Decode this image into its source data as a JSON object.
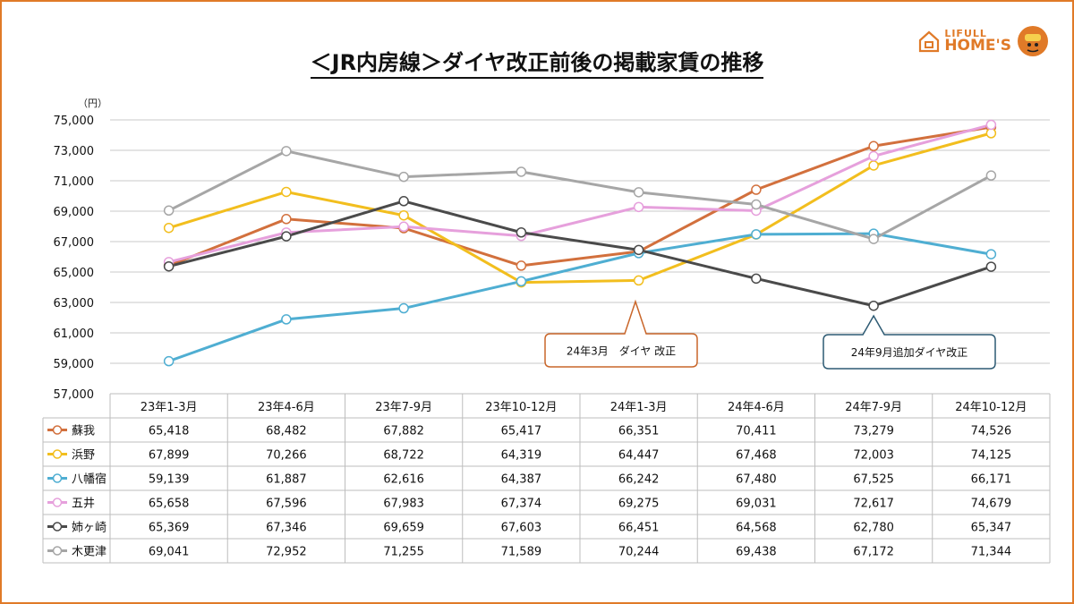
{
  "title": "＜JR内房線＞ダイヤ改正前後の掲載家賃の推移",
  "logo": {
    "line1": "LIFULL",
    "line2": "HOME'S"
  },
  "chart_data": {
    "type": "line",
    "unit_label": "（円）",
    "ylim": [
      57000,
      75000
    ],
    "y_ticks": [
      "57,000",
      "59,000",
      "61,000",
      "63,000",
      "65,000",
      "67,000",
      "69,000",
      "71,000",
      "73,000",
      "75,000"
    ],
    "categories": [
      "23年1-3月",
      "23年4-6月",
      "23年7-9月",
      "23年10-12月",
      "24年1-3月",
      "24年4-6月",
      "24年7-9月",
      "24年10-12月"
    ],
    "series": [
      {
        "name": "蘇我",
        "color": "#D2703D",
        "values": [
          65418,
          68482,
          67882,
          65417,
          66351,
          70411,
          73279,
          74526
        ],
        "labels": [
          "65,418",
          "68,482",
          "67,882",
          "65,417",
          "66,351",
          "70,411",
          "73,279",
          "74,526"
        ]
      },
      {
        "name": "浜野",
        "color": "#F2BE1E",
        "values": [
          67899,
          70266,
          68722,
          64319,
          64447,
          67468,
          72003,
          74125
        ],
        "labels": [
          "67,899",
          "70,266",
          "68,722",
          "64,319",
          "64,447",
          "67,468",
          "72,003",
          "74,125"
        ]
      },
      {
        "name": "八幡宿",
        "color": "#4FAED2",
        "values": [
          59139,
          61887,
          62616,
          64387,
          66242,
          67480,
          67525,
          66171
        ],
        "labels": [
          "59,139",
          "61,887",
          "62,616",
          "64,387",
          "66,242",
          "67,480",
          "67,525",
          "66,171"
        ]
      },
      {
        "name": "五井",
        "color": "#E6A0DC",
        "values": [
          65658,
          67596,
          67983,
          67374,
          69275,
          69031,
          72617,
          74679
        ],
        "labels": [
          "65,658",
          "67,596",
          "67,983",
          "67,374",
          "69,275",
          "69,031",
          "72,617",
          "74,679"
        ]
      },
      {
        "name": "姉ヶ崎",
        "color": "#4A4A4A",
        "values": [
          65369,
          67346,
          69659,
          67603,
          66451,
          64568,
          62780,
          65347
        ],
        "labels": [
          "65,369",
          "67,346",
          "69,659",
          "67,603",
          "66,451",
          "64,568",
          "62,780",
          "65,347"
        ]
      },
      {
        "name": "木更津",
        "color": "#A6A6A6",
        "values": [
          69041,
          72952,
          71255,
          71589,
          70244,
          69438,
          67172,
          71344
        ],
        "labels": [
          "69,041",
          "72,952",
          "71,255",
          "71,589",
          "70,244",
          "69,438",
          "67,172",
          "71,344"
        ]
      }
    ],
    "annotations": [
      {
        "text": "24年3月　ダイヤ 改正",
        "color": "#C9662A",
        "at": "24年1-3月"
      },
      {
        "text": "24年9月追加ダイヤ改正",
        "color": "#2D5A73",
        "at": "24年7-9月"
      }
    ]
  }
}
